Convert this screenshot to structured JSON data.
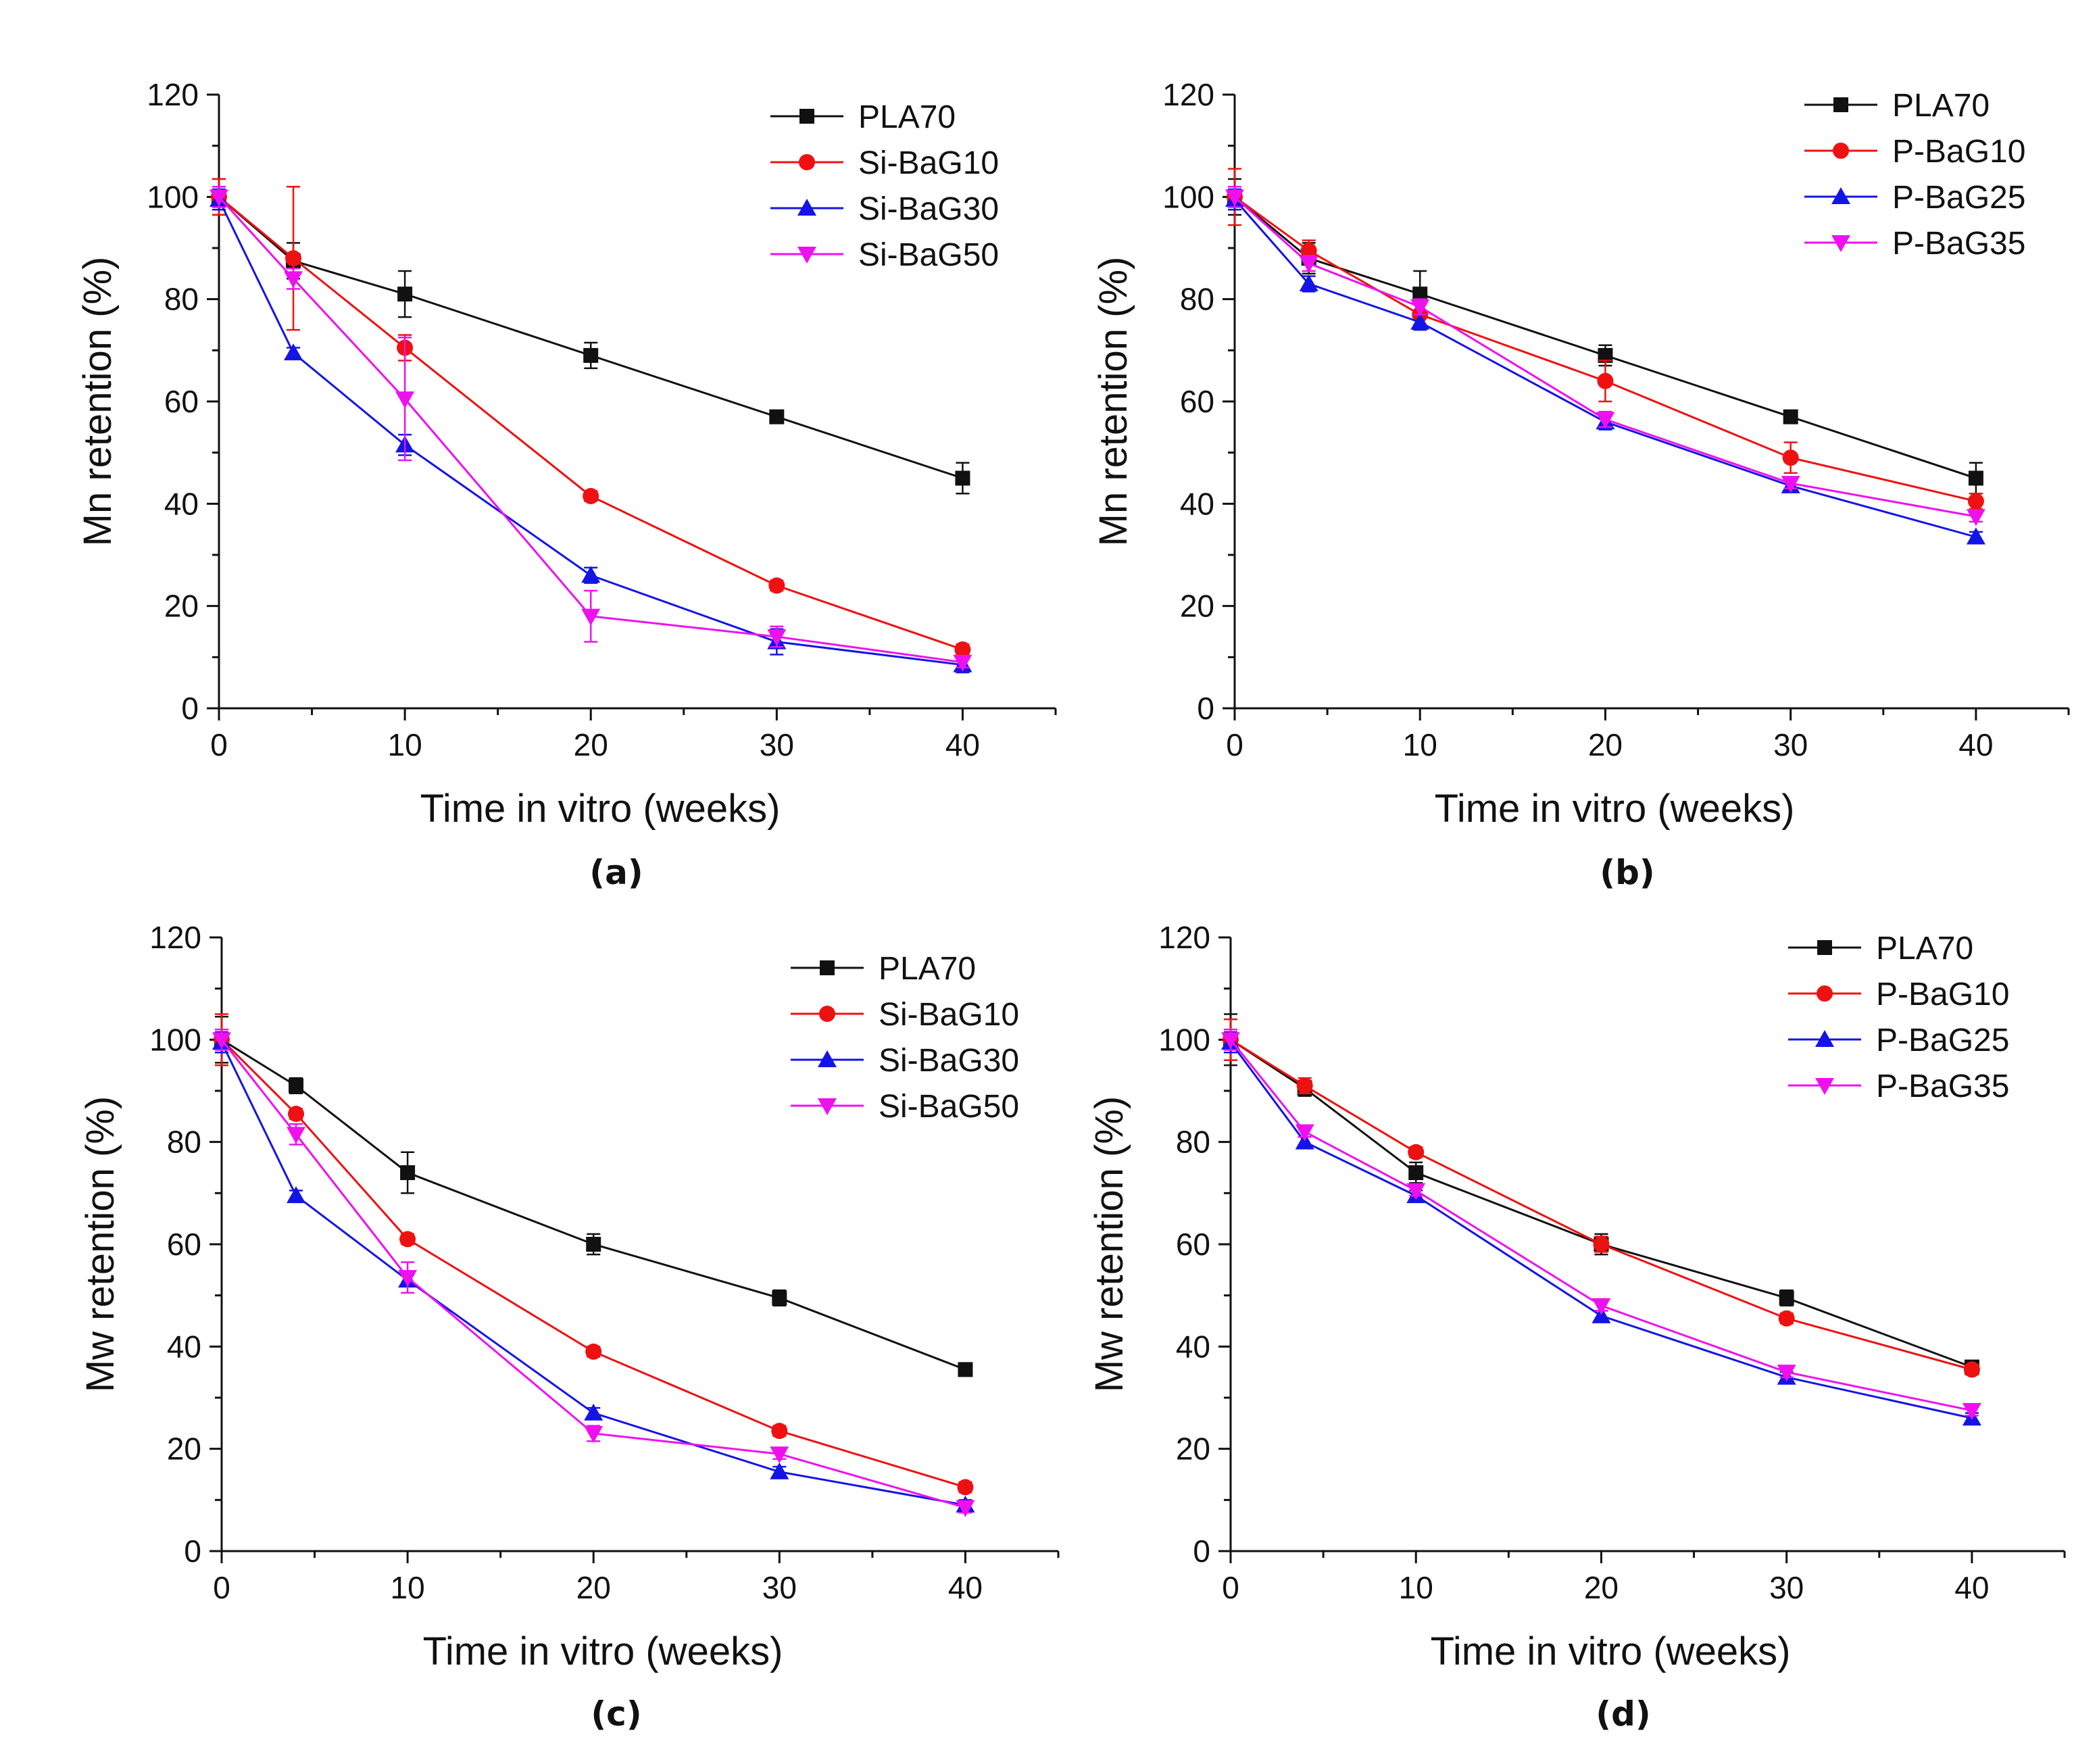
{
  "colors": {
    "PLA70": "#111111",
    "red": "#ee1111",
    "blue": "#1414e6",
    "magenta": "#ee11ee"
  },
  "chart_data": [
    {
      "type": "line",
      "caption": "(a)",
      "xlabel": "Time in vitro (weeks)",
      "ylabel": "Mn retention (%)",
      "xlim": [
        0,
        45
      ],
      "ylim": [
        0,
        120
      ],
      "xticks": [
        0,
        10,
        20,
        30,
        40
      ],
      "yticks": [
        0,
        20,
        40,
        60,
        80,
        100,
        120
      ],
      "legend_position": "top-right",
      "x": [
        0,
        4,
        10,
        20,
        30,
        40
      ],
      "series": [
        {
          "name": "PLA70",
          "marker": "square",
          "color": "#111111",
          "values": [
            100,
            87.5,
            81,
            69,
            57,
            45
          ],
          "errors": [
            3.5,
            3.5,
            4.5,
            2.5,
            1,
            3
          ]
        },
        {
          "name": "Si-BaG10",
          "marker": "circle",
          "color": "#ee1111",
          "values": [
            100,
            88,
            70.5,
            41.5,
            24,
            11.5
          ],
          "errors": [
            3.5,
            14,
            2.5,
            1,
            1,
            1
          ]
        },
        {
          "name": "Si-BaG30",
          "marker": "triangle-up",
          "color": "#1414e6",
          "values": [
            99.5,
            69.5,
            51.5,
            26,
            13,
            8.5
          ],
          "errors": [
            2,
            1,
            2,
            1.5,
            2.5,
            1.5
          ]
        },
        {
          "name": "Si-BaG50",
          "marker": "triangle-down",
          "color": "#ee11ee",
          "values": [
            100,
            84,
            60.5,
            18,
            14,
            9
          ],
          "errors": [
            2,
            2,
            12,
            5,
            2,
            1
          ]
        }
      ]
    },
    {
      "type": "line",
      "caption": "(b)",
      "xlabel": "Time in vitro (weeks)",
      "ylabel": "Mn retention (%)",
      "xlim": [
        0,
        45
      ],
      "ylim": [
        0,
        120
      ],
      "xticks": [
        0,
        10,
        20,
        30,
        40
      ],
      "yticks": [
        0,
        20,
        40,
        60,
        80,
        100,
        120
      ],
      "legend_position": "top-right",
      "x": [
        0,
        4,
        10,
        20,
        30,
        40
      ],
      "series": [
        {
          "name": "PLA70",
          "marker": "square",
          "color": "#111111",
          "values": [
            100,
            88,
            81,
            69,
            57,
            45
          ],
          "errors": [
            3.5,
            3,
            4.5,
            2,
            1,
            3
          ]
        },
        {
          "name": "P-BaG10",
          "marker": "circle",
          "color": "#ee1111",
          "values": [
            100,
            89.5,
            77,
            64,
            49,
            40.5
          ],
          "errors": [
            5.5,
            2,
            2,
            4,
            3,
            1.5
          ]
        },
        {
          "name": "P-BaG25",
          "marker": "triangle-up",
          "color": "#1414e6",
          "values": [
            99.5,
            83,
            75.5,
            56,
            43.5,
            33.5
          ],
          "errors": [
            2,
            1.5,
            1.5,
            1.5,
            1,
            1
          ]
        },
        {
          "name": "P-BaG35",
          "marker": "triangle-down",
          "color": "#ee11ee",
          "values": [
            100,
            87,
            78.5,
            56.5,
            44,
            37.5
          ],
          "errors": [
            2,
            1.5,
            1.5,
            1.5,
            1,
            1
          ]
        }
      ]
    },
    {
      "type": "line",
      "caption": "(c)",
      "xlabel": "Time in vitro (weeks)",
      "ylabel": "Mw retention (%)",
      "xlim": [
        0,
        45
      ],
      "ylim": [
        0,
        120
      ],
      "xticks": [
        0,
        10,
        20,
        30,
        40
      ],
      "yticks": [
        0,
        20,
        40,
        60,
        80,
        100,
        120
      ],
      "legend_position": "top-right",
      "x": [
        0,
        4,
        10,
        20,
        30,
        40
      ],
      "series": [
        {
          "name": "PLA70",
          "marker": "square",
          "color": "#111111",
          "values": [
            100,
            91,
            74,
            60,
            49.5,
            35.5
          ],
          "errors": [
            4.5,
            1.5,
            4,
            2,
            1.5,
            1
          ]
        },
        {
          "name": "Si-BaG10",
          "marker": "circle",
          "color": "#ee1111",
          "values": [
            100,
            85.5,
            61,
            39,
            23.5,
            12.5
          ],
          "errors": [
            5,
            1,
            1,
            1,
            1,
            1
          ]
        },
        {
          "name": "Si-BaG30",
          "marker": "triangle-up",
          "color": "#1414e6",
          "values": [
            99.5,
            69.5,
            53,
            27,
            15.5,
            9
          ],
          "errors": [
            2,
            1,
            1,
            1,
            1,
            1
          ]
        },
        {
          "name": "Si-BaG50",
          "marker": "triangle-down",
          "color": "#ee11ee",
          "values": [
            100,
            81.5,
            53.5,
            23,
            19,
            8.5
          ],
          "errors": [
            2,
            2,
            3,
            1.5,
            1,
            1
          ]
        }
      ]
    },
    {
      "type": "line",
      "caption": "(d)",
      "xlabel": "Time in vitro (weeks)",
      "ylabel": "Mw retention (%)",
      "xlim": [
        0,
        45
      ],
      "ylim": [
        0,
        120
      ],
      "xticks": [
        0,
        10,
        20,
        30,
        40
      ],
      "yticks": [
        0,
        20,
        40,
        60,
        80,
        100,
        120
      ],
      "legend_position": "top-right",
      "x": [
        0,
        4,
        10,
        20,
        30,
        40
      ],
      "series": [
        {
          "name": "PLA70",
          "marker": "square",
          "color": "#111111",
          "values": [
            100,
            90.5,
            74,
            60,
            49.5,
            36
          ],
          "errors": [
            5,
            1.5,
            2,
            2,
            1.5,
            1
          ]
        },
        {
          "name": "P-BaG10",
          "marker": "circle",
          "color": "#ee1111",
          "values": [
            100,
            91,
            78,
            60,
            45.5,
            35.5
          ],
          "errors": [
            4,
            1.5,
            1,
            1.5,
            1,
            1
          ]
        },
        {
          "name": "P-BaG25",
          "marker": "triangle-up",
          "color": "#1414e6",
          "values": [
            99.5,
            80,
            69.5,
            46,
            34,
            26
          ],
          "errors": [
            2,
            1,
            1,
            1,
            1,
            1
          ]
        },
        {
          "name": "P-BaG35",
          "marker": "triangle-down",
          "color": "#ee11ee",
          "values": [
            100,
            82,
            70.5,
            48,
            35,
            27.5
          ],
          "errors": [
            2,
            1,
            1,
            1,
            1,
            1
          ]
        }
      ]
    }
  ]
}
